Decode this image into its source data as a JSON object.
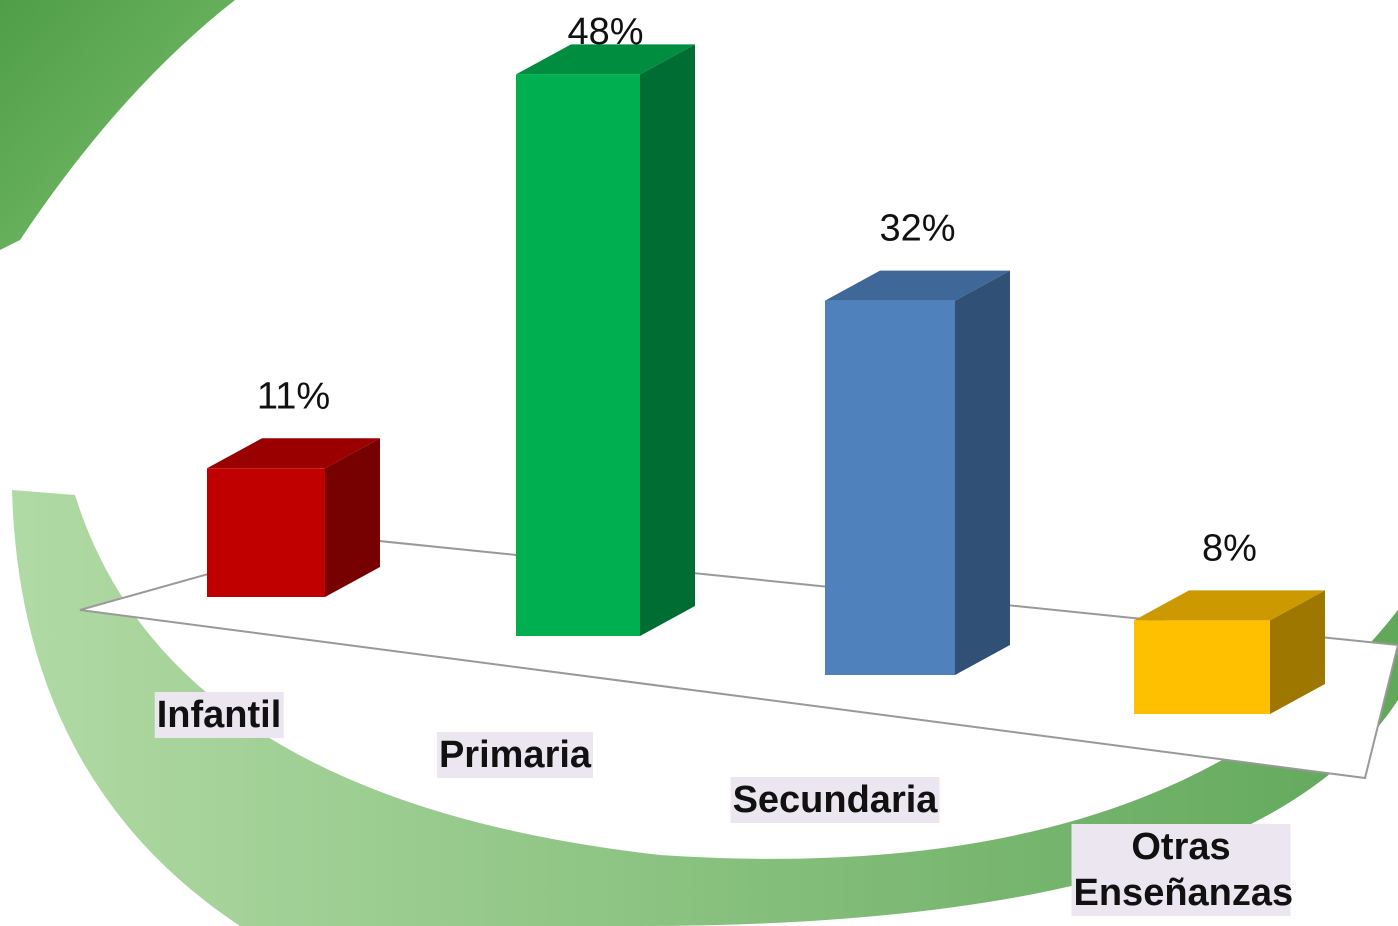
{
  "chart_data": {
    "type": "bar",
    "categories": [
      "Infantil",
      "Primaria",
      "Secundaria",
      "Otras Enseñanzas"
    ],
    "values": [
      11,
      48,
      32,
      8
    ],
    "value_labels": [
      "11%",
      "48%",
      "32%",
      "8%"
    ],
    "colors": [
      "#c00000",
      "#00b050",
      "#4f81bd",
      "#ffc000"
    ]
  }
}
